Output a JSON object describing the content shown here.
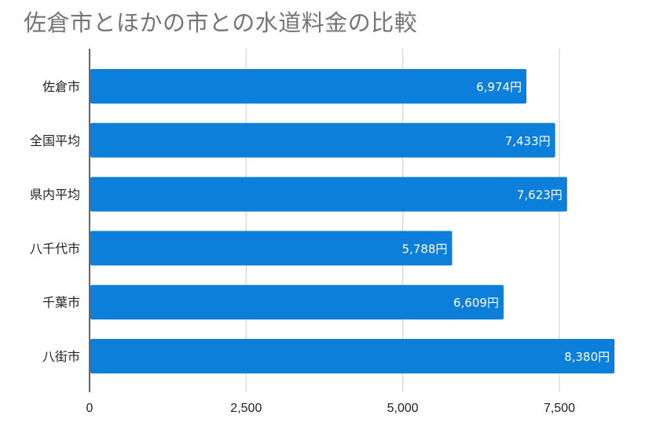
{
  "chart_data": {
    "type": "bar",
    "orientation": "horizontal",
    "title": "佐倉市とほかの市との水道料金の比較",
    "categories": [
      "佐倉市",
      "全国平均",
      "県内平均",
      "八千代市",
      "千葉市",
      "八街市"
    ],
    "values": [
      6974,
      7433,
      7623,
      5788,
      6609,
      8380
    ],
    "data_labels": [
      "6,974円",
      "7,433円",
      "7,623円",
      "5,788円",
      "6,609円",
      "8,380円"
    ],
    "x_ticks": [
      0,
      2500,
      5000,
      7500
    ],
    "x_tick_labels": [
      "0",
      "2,500",
      "5,000",
      "7,500"
    ],
    "xlim": [
      0,
      9000
    ],
    "grid": "vertical",
    "legend": "none",
    "bar_color": "#0b7fd9",
    "grid_color": "#cccccc",
    "axis_color": "#333333",
    "title_color": "#757575"
  }
}
